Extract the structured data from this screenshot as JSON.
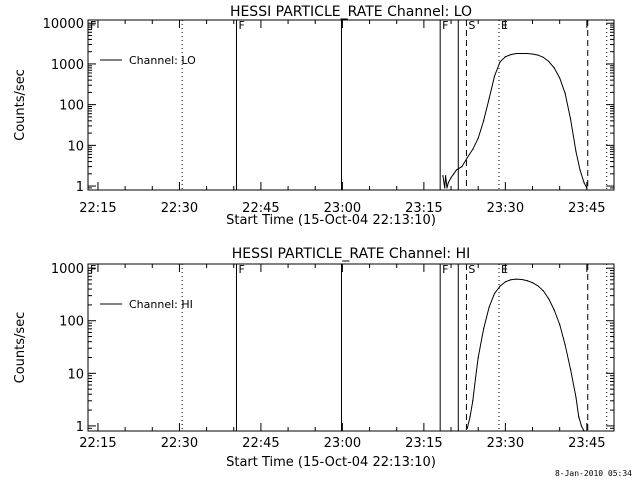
{
  "footer": {
    "timestamp": "8-Jan-2010 05:34"
  },
  "chart_data": [
    {
      "type": "line",
      "title": "HESSI PARTICLE_RATE Channel: LO",
      "xlabel": "Start Time (15-Oct-04 22:13:10)",
      "ylabel": "Counts/sec",
      "y_scale": "log",
      "xlim": [
        "22:13:10",
        "23:50:00"
      ],
      "ylim": [
        0.8,
        12000
      ],
      "x_ticks": [
        "22:15",
        "22:30",
        "22:45",
        "23:00",
        "23:15",
        "23:30",
        "23:45"
      ],
      "y_ticks": [
        "1",
        "10",
        "100",
        "1000",
        "10000"
      ],
      "legend": {
        "placement": "top-left",
        "entries": [
          "Channel: LO"
        ]
      },
      "series": [
        {
          "name": "Channel: LO",
          "x": [
            "23:18:30",
            "23:18:50",
            "23:19:00",
            "23:19:15",
            "23:19:30",
            "23:20:00",
            "23:20:30",
            "23:21:00",
            "23:22:00",
            "23:23:00",
            "23:24:00",
            "23:25:00",
            "23:26:00",
            "23:27:00",
            "23:28:00",
            "23:29:00",
            "23:30:00",
            "23:31:00",
            "23:32:00",
            "23:33:00",
            "23:34:00",
            "23:35:00",
            "23:36:00",
            "23:37:00",
            "23:38:00",
            "23:39:00",
            "23:40:00",
            "23:41:00",
            "23:42:00",
            "23:43:00",
            "23:43:45",
            "23:44:30",
            "23:45:00"
          ],
          "values": [
            1.8,
            0.9,
            1.8,
            0.9,
            1.2,
            1.6,
            2,
            2.5,
            3,
            5,
            8,
            15,
            40,
            140,
            500,
            1100,
            1500,
            1700,
            1800,
            1800,
            1800,
            1750,
            1650,
            1450,
            1150,
            800,
            450,
            190,
            45,
            7,
            2.5,
            1.2,
            0.9
          ]
        }
      ],
      "markers": [
        {
          "label": "F",
          "time": "22:13:10",
          "style": "solid"
        },
        {
          "label": "",
          "time": "22:30:30",
          "style": "dotted"
        },
        {
          "label": "F",
          "time": "22:40:30",
          "style": "solid"
        },
        {
          "label": "",
          "time": "22:59:50",
          "style": "solid"
        },
        {
          "label": "F",
          "time": "23:18:00",
          "style": "solid"
        },
        {
          "label": "",
          "time": "23:21:20",
          "style": "solid"
        },
        {
          "label": "S",
          "time": "23:22:50",
          "style": "dashed"
        },
        {
          "label": "E",
          "time": "23:28:50",
          "style": "dotted"
        },
        {
          "label": "",
          "time": "23:45:10",
          "style": "dashed"
        },
        {
          "label": "",
          "time": "23:48:40",
          "style": "dotted"
        }
      ]
    },
    {
      "type": "line",
      "title": "HESSI PARTICLE_RATE Channel: HI",
      "xlabel": "Start Time (15-Oct-04 22:13:10)",
      "ylabel": "Counts/sec",
      "y_scale": "log",
      "xlim": [
        "22:13:10",
        "23:50:00"
      ],
      "ylim": [
        0.8,
        1200
      ],
      "x_ticks": [
        "22:15",
        "22:30",
        "22:45",
        "23:00",
        "23:15",
        "23:30",
        "23:45"
      ],
      "y_ticks": [
        "1",
        "10",
        "100",
        "1000"
      ],
      "legend": {
        "placement": "top-left",
        "entries": [
          "Channel: HI"
        ]
      },
      "series": [
        {
          "name": "Channel: HI",
          "x": [
            "23:23:00",
            "23:23:30",
            "23:24:00",
            "23:24:30",
            "23:25:00",
            "23:26:00",
            "23:27:00",
            "23:28:00",
            "23:29:00",
            "23:30:00",
            "23:31:00",
            "23:32:00",
            "23:33:00",
            "23:34:00",
            "23:35:00",
            "23:36:00",
            "23:37:00",
            "23:38:00",
            "23:39:00",
            "23:40:00",
            "23:41:00",
            "23:42:00",
            "23:43:00",
            "23:43:30",
            "23:44:00",
            "23:44:30"
          ],
          "values": [
            0.9,
            1.5,
            3,
            8,
            20,
            70,
            180,
            330,
            450,
            550,
            600,
            620,
            610,
            580,
            530,
            460,
            370,
            260,
            160,
            85,
            35,
            12,
            3.5,
            1.5,
            1,
            0.8
          ]
        }
      ],
      "markers": [
        {
          "label": "F",
          "time": "22:13:10",
          "style": "solid"
        },
        {
          "label": "",
          "time": "22:30:30",
          "style": "dotted"
        },
        {
          "label": "F",
          "time": "22:40:30",
          "style": "solid"
        },
        {
          "label": "",
          "time": "22:59:50",
          "style": "solid"
        },
        {
          "label": "F",
          "time": "23:18:00",
          "style": "solid"
        },
        {
          "label": "",
          "time": "23:21:20",
          "style": "solid"
        },
        {
          "label": "S",
          "time": "23:22:50",
          "style": "dashed"
        },
        {
          "label": "E",
          "time": "23:28:50",
          "style": "dotted"
        },
        {
          "label": "",
          "time": "23:45:10",
          "style": "dashed"
        },
        {
          "label": "",
          "time": "23:48:40",
          "style": "dotted"
        }
      ]
    }
  ]
}
